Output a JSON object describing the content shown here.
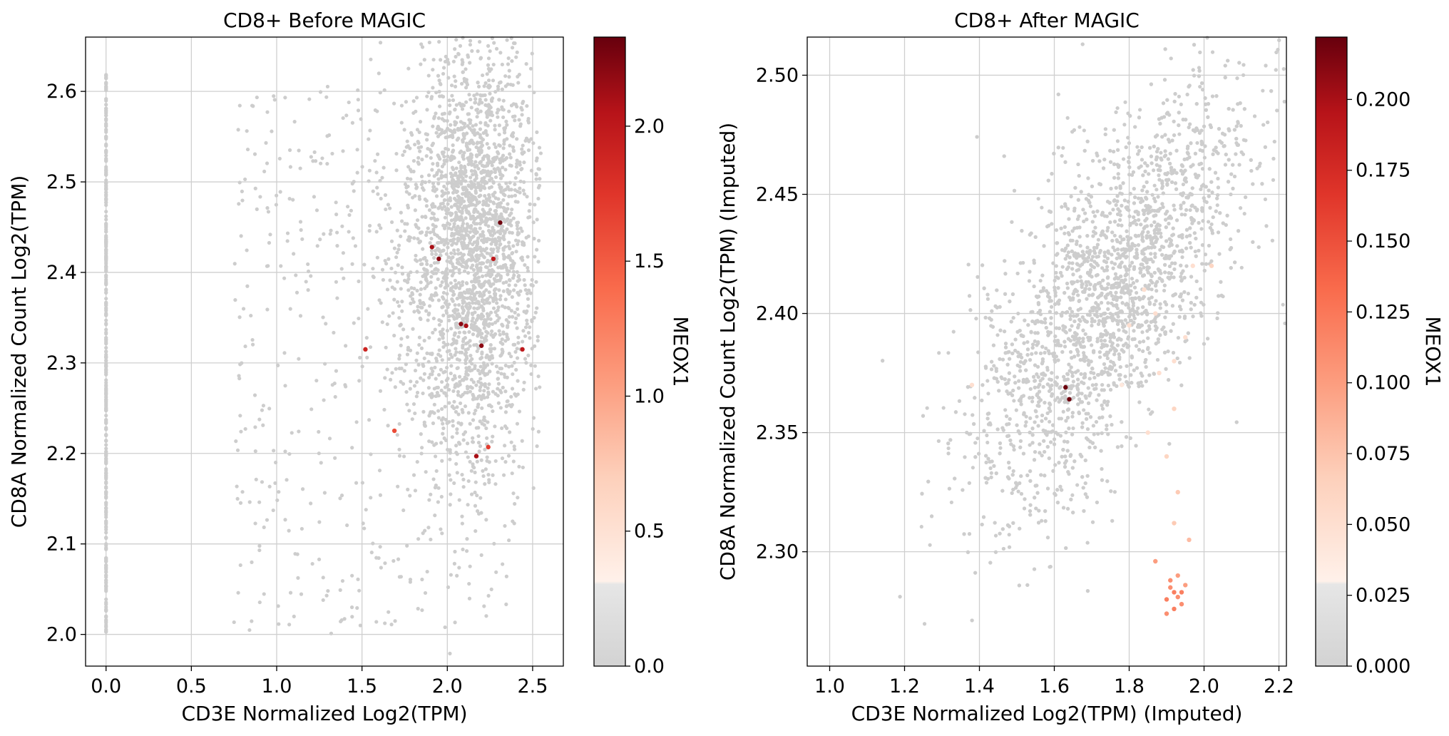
{
  "chart_data": [
    {
      "type": "scatter",
      "title": "CD8+ Before MAGIC",
      "xlabel": "CD3E Normalized Log2(TPM)",
      "ylabel": "CD8A Normalized Count Log2(TPM)",
      "xlim": [
        -0.12,
        2.68
      ],
      "ylim": [
        1.965,
        2.66
      ],
      "xticks": [
        "0.0",
        "0.5",
        "1.0",
        "1.5",
        "2.0",
        "2.5"
      ],
      "yticks": [
        "2.0",
        "2.1",
        "2.2",
        "2.3",
        "2.4",
        "2.5",
        "2.6"
      ],
      "grid": true,
      "colorbar": {
        "label": "MEOX1",
        "colormap": "grey-to-Reds",
        "range": [
          0.0,
          2.33
        ],
        "ticks": [
          "0.0",
          "0.5",
          "1.0",
          "1.5",
          "2.0"
        ]
      },
      "point_color": "#cdcdcd",
      "cloud": {
        "x_center": 2.15,
        "x_spread": 0.2,
        "y_center": 2.43,
        "y_spread": 0.12,
        "count": 3000
      },
      "zero_column": {
        "x": 0.0,
        "y_min": 2.0,
        "y_max": 2.62,
        "count": 400
      },
      "highlighted": [
        {
          "x": 2.31,
          "y": 2.455,
          "v": 2.3
        },
        {
          "x": 1.91,
          "y": 2.428,
          "v": 2.1
        },
        {
          "x": 1.95,
          "y": 2.415,
          "v": 2.2
        },
        {
          "x": 2.27,
          "y": 2.415,
          "v": 2.0
        },
        {
          "x": 2.08,
          "y": 2.343,
          "v": 2.2
        },
        {
          "x": 2.11,
          "y": 2.341,
          "v": 2.1
        },
        {
          "x": 2.2,
          "y": 2.319,
          "v": 2.2
        },
        {
          "x": 2.44,
          "y": 2.315,
          "v": 2.0
        },
        {
          "x": 1.52,
          "y": 2.315,
          "v": 1.9
        },
        {
          "x": 1.69,
          "y": 2.225,
          "v": 1.6
        },
        {
          "x": 2.24,
          "y": 2.207,
          "v": 1.7
        },
        {
          "x": 2.17,
          "y": 2.197,
          "v": 2.1
        }
      ]
    },
    {
      "type": "scatter",
      "title": "CD8+ After MAGIC",
      "xlabel": "CD3E Normalized Log2(TPM) (Imputed)",
      "ylabel": "CD8A Normalized Count  Log2(TPM) (Imputed)",
      "xlim": [
        0.94,
        2.22
      ],
      "ylim": [
        2.252,
        2.516
      ],
      "xticks": [
        "1.0",
        "1.2",
        "1.4",
        "1.6",
        "1.8",
        "2.0",
        "2.2"
      ],
      "yticks": [
        "2.30",
        "2.35",
        "2.40",
        "2.45",
        "2.50"
      ],
      "grid": true,
      "colorbar": {
        "label": "MEOX1",
        "colormap": "grey-to-Reds",
        "range": [
          0.0,
          0.222
        ],
        "ticks": [
          "0.000",
          "0.025",
          "0.050",
          "0.075",
          "0.100",
          "0.125",
          "0.150",
          "0.175",
          "0.200"
        ]
      },
      "point_color": "#cdcdcd",
      "cloud": {
        "x_center": 1.75,
        "x_spread": 0.18,
        "y_center": 2.41,
        "y_spread": 0.035,
        "slope": 0.17,
        "count": 3800
      },
      "highlighted": [
        {
          "x": 1.63,
          "y": 2.369,
          "v": 0.22
        },
        {
          "x": 1.64,
          "y": 2.364,
          "v": 0.22
        },
        {
          "x": 1.91,
          "y": 2.285,
          "v": 0.11
        },
        {
          "x": 1.92,
          "y": 2.283,
          "v": 0.12
        },
        {
          "x": 1.93,
          "y": 2.281,
          "v": 0.11
        },
        {
          "x": 1.9,
          "y": 2.28,
          "v": 0.12
        },
        {
          "x": 1.94,
          "y": 2.278,
          "v": 0.11
        },
        {
          "x": 1.92,
          "y": 2.276,
          "v": 0.12
        },
        {
          "x": 1.95,
          "y": 2.286,
          "v": 0.1
        },
        {
          "x": 1.87,
          "y": 2.296,
          "v": 0.1
        },
        {
          "x": 1.93,
          "y": 2.29,
          "v": 0.1
        },
        {
          "x": 1.91,
          "y": 2.288,
          "v": 0.11
        },
        {
          "x": 1.94,
          "y": 2.283,
          "v": 0.12
        },
        {
          "x": 1.9,
          "y": 2.274,
          "v": 0.11
        },
        {
          "x": 1.96,
          "y": 2.305,
          "v": 0.08
        },
        {
          "x": 1.92,
          "y": 2.312,
          "v": 0.07
        },
        {
          "x": 1.93,
          "y": 2.325,
          "v": 0.07
        },
        {
          "x": 1.9,
          "y": 2.34,
          "v": 0.06
        },
        {
          "x": 1.92,
          "y": 2.36,
          "v": 0.06
        },
        {
          "x": 1.85,
          "y": 2.35,
          "v": 0.05
        },
        {
          "x": 1.88,
          "y": 2.375,
          "v": 0.05
        },
        {
          "x": 1.95,
          "y": 2.39,
          "v": 0.05
        },
        {
          "x": 1.97,
          "y": 2.42,
          "v": 0.05
        },
        {
          "x": 1.8,
          "y": 2.395,
          "v": 0.05
        },
        {
          "x": 1.84,
          "y": 2.41,
          "v": 0.05
        },
        {
          "x": 2.02,
          "y": 2.42,
          "v": 0.06
        },
        {
          "x": 1.78,
          "y": 2.37,
          "v": 0.04
        },
        {
          "x": 1.38,
          "y": 2.37,
          "v": 0.05
        },
        {
          "x": 1.87,
          "y": 2.4,
          "v": 0.05
        },
        {
          "x": 1.92,
          "y": 2.38,
          "v": 0.05
        }
      ]
    }
  ]
}
